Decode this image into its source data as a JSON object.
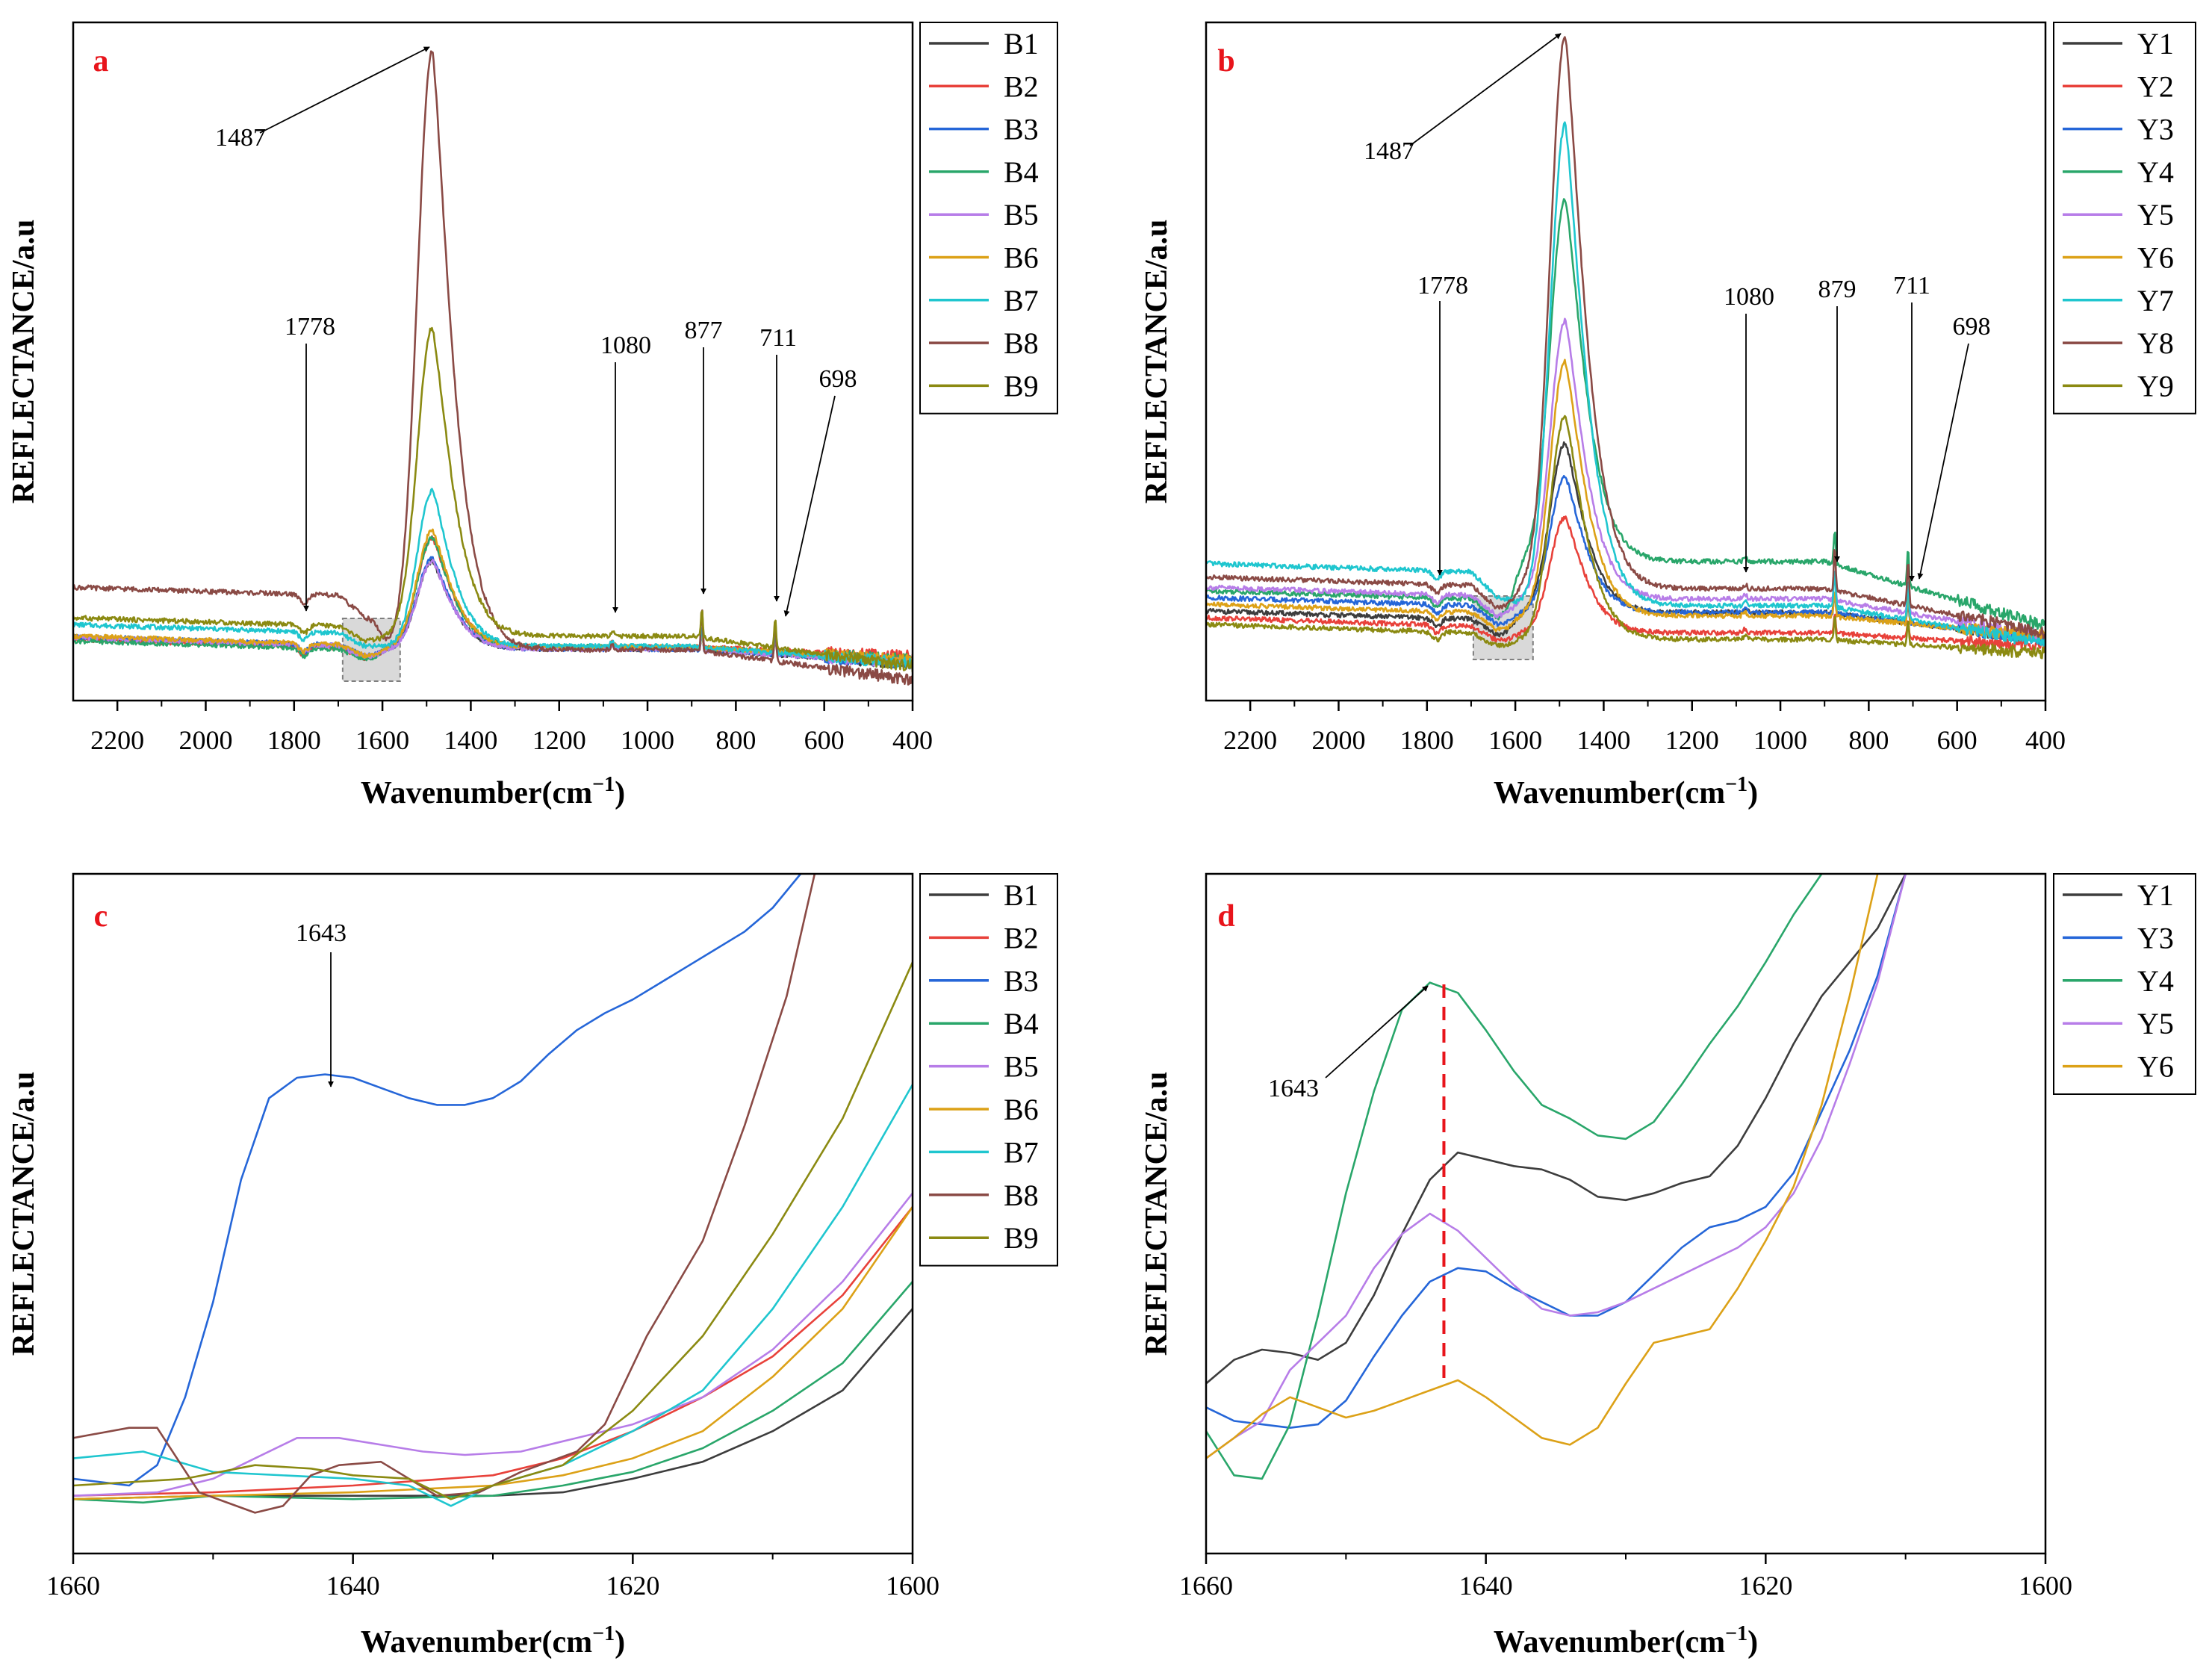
{
  "colors": {
    "B1": "#3d3d3d",
    "B2": "#e8413a",
    "B3": "#2566d8",
    "B4": "#29a66a",
    "B5": "#b77de8",
    "B6": "#dca117",
    "B7": "#1fc6cf",
    "B8": "#8a4a45",
    "B9": "#8b8a12",
    "Y1": "#3d3d3d",
    "Y2": "#e8413a",
    "Y3": "#2566d8",
    "Y4": "#29a66a",
    "Y5": "#b77de8",
    "Y6": "#dca117",
    "Y7": "#1fc6cf",
    "Y8": "#8a4a45",
    "Y9": "#8b8a12",
    "panel_label": "#e8141b",
    "guide_line": "#e8141b"
  },
  "chart_data": [
    {
      "id": "a",
      "type": "line",
      "panel_label": "a",
      "xlabel_main": "Wavenumber(cm",
      "xlabel_sup": "−1",
      "xlabel_tail": ")",
      "ylabel": "REFLECTANCE/a.u",
      "xlim": [
        2300,
        400
      ],
      "ylim": [
        0,
        100
      ],
      "xticks": [
        2200,
        2000,
        1800,
        1600,
        1400,
        1200,
        1000,
        800,
        600,
        400
      ],
      "xtick_labels": [
        "2200",
        "2000",
        "1800",
        "1600",
        "1400",
        "1200",
        "1000",
        "800",
        "600",
        "400"
      ],
      "highlight_range": [
        1690,
        1560
      ],
      "legend": [
        "B1",
        "B2",
        "B3",
        "B4",
        "B5",
        "B6",
        "B7",
        "B8",
        "B9"
      ],
      "series": [
        {
          "name": "B1",
          "baseline": 8.0,
          "peak": 20.5,
          "hf": 7.6,
          "endv": 5.5
        },
        {
          "name": "B2",
          "baseline": 7.8,
          "peak": 24.0,
          "hf": 7.9,
          "endv": 6.5
        },
        {
          "name": "B3",
          "baseline": 8.2,
          "peak": 21.0,
          "hf": 7.6,
          "endv": 5.5
        },
        {
          "name": "B4",
          "baseline": 7.6,
          "peak": 24.0,
          "hf": 7.9,
          "endv": 6.0
        },
        {
          "name": "B5",
          "baseline": 8.1,
          "peak": 20.5,
          "hf": 7.6,
          "endv": 5.5
        },
        {
          "name": "B6",
          "baseline": 8.3,
          "peak": 25.0,
          "hf": 7.9,
          "endv": 6.0
        },
        {
          "name": "B7",
          "baseline": 10.0,
          "peak": 31.0,
          "hf": 8.0,
          "endv": 5.5
        },
        {
          "name": "B8",
          "baseline": 15.5,
          "peak": 96.0,
          "hf": 7.5,
          "endv": 3.0
        },
        {
          "name": "B9",
          "baseline": 11.0,
          "peak": 55.0,
          "hf": 9.5,
          "endv": 5.0
        }
      ],
      "annotations": [
        {
          "label": "1487",
          "x": 1487
        },
        {
          "label": "1778",
          "x": 1778
        },
        {
          "label": "1080",
          "x": 1080
        },
        {
          "label": "877",
          "x": 877
        },
        {
          "label": "711",
          "x": 711
        },
        {
          "label": "698",
          "x": 698
        }
      ]
    },
    {
      "id": "b",
      "type": "line",
      "panel_label": "b",
      "xlabel_main": "Wavenumber(cm",
      "xlabel_sup": "−1",
      "xlabel_tail": ")",
      "ylabel": "REFLECTANCE/a.u",
      "xlim": [
        2300,
        400
      ],
      "ylim": [
        0,
        100
      ],
      "xticks": [
        2200,
        2000,
        1800,
        1600,
        1400,
        1200,
        1000,
        800,
        600,
        400
      ],
      "xtick_labels": [
        "2200",
        "2000",
        "1800",
        "1600",
        "1400",
        "1200",
        "1000",
        "800",
        "600",
        "400"
      ],
      "highlight_range": [
        1695,
        1560
      ],
      "legend": [
        "Y1",
        "Y2",
        "Y3",
        "Y4",
        "Y5",
        "Y6",
        "Y7",
        "Y8",
        "Y9"
      ],
      "series": [
        {
          "name": "Y1",
          "baseline": 12.0,
          "peak": 38.0,
          "hf": 13.0,
          "endv": 9.0
        },
        {
          "name": "Y2",
          "baseline": 11.0,
          "peak": 27.0,
          "hf": 10.0,
          "endv": 8.0
        },
        {
          "name": "Y3",
          "baseline": 14.0,
          "peak": 33.0,
          "hf": 13.0,
          "endv": 9.0
        },
        {
          "name": "Y4",
          "baseline": 15.0,
          "peak": 74.0,
          "hf": 20.5,
          "endv": 11.0
        },
        {
          "name": "Y5",
          "baseline": 15.5,
          "peak": 56.0,
          "hf": 15.0,
          "endv": 9.5
        },
        {
          "name": "Y6",
          "baseline": 13.0,
          "peak": 50.0,
          "hf": 12.5,
          "endv": 9.5
        },
        {
          "name": "Y7",
          "baseline": 19.0,
          "peak": 85.0,
          "hf": 14.0,
          "endv": 8.5
        },
        {
          "name": "Y8",
          "baseline": 17.0,
          "peak": 98.0,
          "hf": 16.5,
          "endv": 10.0
        },
        {
          "name": "Y9",
          "baseline": 10.0,
          "peak": 42.0,
          "hf": 9.0,
          "endv": 7.0
        }
      ],
      "annotations": [
        {
          "label": "1487",
          "x": 1487
        },
        {
          "label": "1778",
          "x": 1778
        },
        {
          "label": "1080",
          "x": 1080
        },
        {
          "label": "879",
          "x": 879
        },
        {
          "label": "711",
          "x": 711
        },
        {
          "label": "698",
          "x": 698
        }
      ]
    },
    {
      "id": "c",
      "type": "line",
      "panel_label": "c",
      "xlabel_main": "Wavenumber(cm",
      "xlabel_sup": "−1",
      "xlabel_tail": ")",
      "ylabel": "REFLECTANCE/a.u",
      "xlim": [
        1660,
        1600
      ],
      "ylim": [
        0,
        100
      ],
      "xticks": [
        1660,
        1640,
        1620,
        1600
      ],
      "xtick_labels": [
        "1660",
        "1640",
        "1620",
        "1600"
      ],
      "legend": [
        "B1",
        "B2",
        "B3",
        "B4",
        "B5",
        "B6",
        "B7",
        "B8",
        "B9"
      ],
      "series": [
        {
          "name": "B1",
          "x": [
            1660,
            1650,
            1640,
            1630,
            1625,
            1620,
            1615,
            1610,
            1605,
            1600
          ],
          "y": [
            8,
            8.5,
            8.5,
            8.5,
            9,
            11,
            13.5,
            18,
            24,
            36
          ]
        },
        {
          "name": "B2",
          "x": [
            1660,
            1650,
            1640,
            1630,
            1625,
            1620,
            1615,
            1610,
            1605,
            1600
          ],
          "y": [
            8.5,
            9,
            10,
            11.5,
            14,
            18,
            23,
            29,
            38,
            51
          ]
        },
        {
          "name": "B3",
          "x": [
            1660,
            1656,
            1654,
            1652,
            1650,
            1648,
            1646,
            1644,
            1642,
            1640,
            1638,
            1636,
            1634,
            1632,
            1630,
            1628,
            1626,
            1624,
            1622,
            1620,
            1618,
            1616,
            1614,
            1612,
            1610,
            1608
          ],
          "y": [
            11,
            10,
            13,
            23,
            37,
            55,
            67,
            70,
            70.5,
            70,
            68.5,
            67,
            66,
            66,
            67,
            69.5,
            73.5,
            77,
            79.5,
            81.5,
            84,
            86.5,
            89,
            91.5,
            95,
            100
          ]
        },
        {
          "name": "B4",
          "x": [
            1660,
            1655,
            1650,
            1640,
            1630,
            1625,
            1620,
            1615,
            1610,
            1605,
            1600
          ],
          "y": [
            8,
            7.5,
            8.5,
            8,
            8.5,
            10,
            12,
            15.5,
            21,
            28,
            40
          ]
        },
        {
          "name": "B5",
          "x": [
            1660,
            1654,
            1650,
            1647,
            1644,
            1641,
            1638,
            1635,
            1632,
            1628,
            1625,
            1620,
            1615,
            1610,
            1605,
            1600
          ],
          "y": [
            8.5,
            9,
            11,
            14,
            17,
            17,
            16,
            15,
            14.5,
            15,
            16.5,
            19,
            23,
            30,
            40,
            53
          ]
        },
        {
          "name": "B6",
          "x": [
            1660,
            1650,
            1640,
            1630,
            1625,
            1620,
            1615,
            1610,
            1605,
            1600
          ],
          "y": [
            8,
            8.5,
            9,
            10,
            11.5,
            14,
            18,
            26,
            36,
            51
          ]
        },
        {
          "name": "B7",
          "x": [
            1660,
            1655,
            1650,
            1640,
            1636,
            1633,
            1630,
            1625,
            1620,
            1615,
            1610,
            1605,
            1600
          ],
          "y": [
            14,
            15,
            12,
            11,
            10,
            7,
            10,
            13,
            18,
            24,
            36,
            51,
            69
          ]
        },
        {
          "name": "B8",
          "x": [
            1660,
            1656,
            1654,
            1651,
            1647,
            1645,
            1643,
            1641,
            1638,
            1636,
            1634,
            1631,
            1628,
            1624,
            1622,
            1619,
            1615,
            1612,
            1609,
            1607
          ],
          "y": [
            17,
            18.5,
            18.5,
            9,
            6,
            7,
            11.5,
            13,
            13.5,
            11,
            8.5,
            9,
            12,
            15,
            19,
            32,
            46,
            63,
            82,
            100
          ]
        },
        {
          "name": "B9",
          "x": [
            1660,
            1656,
            1652,
            1647,
            1643,
            1640,
            1636,
            1633,
            1630,
            1625,
            1620,
            1615,
            1610,
            1605,
            1600
          ],
          "y": [
            10,
            10.5,
            11,
            13,
            12.5,
            11.5,
            11,
            8,
            10,
            13,
            21,
            32,
            47,
            64,
            87
          ]
        }
      ],
      "annotations": [
        {
          "label": "1643",
          "x": 1642
        }
      ]
    },
    {
      "id": "d",
      "type": "line",
      "panel_label": "d",
      "xlabel_main": "Wavenumber(cm",
      "xlabel_sup": "−1",
      "xlabel_tail": ")",
      "ylabel": "REFLECTANCE/a.u",
      "xlim": [
        1660,
        1600
      ],
      "ylim": [
        0,
        100
      ],
      "xticks": [
        1660,
        1640,
        1620,
        1600
      ],
      "xtick_labels": [
        "1660",
        "1640",
        "1620",
        "1600"
      ],
      "legend": [
        "Y1",
        "Y3",
        "Y4",
        "Y5",
        "Y6"
      ],
      "series": [
        {
          "name": "Y1",
          "x": [
            1660,
            1658,
            1656,
            1654,
            1652,
            1650,
            1648,
            1646,
            1644,
            1642,
            1640,
            1638,
            1636,
            1634,
            1632,
            1630,
            1628,
            1626,
            1624,
            1622,
            1620,
            1618,
            1616,
            1614,
            1612,
            1610
          ],
          "y": [
            25,
            28.5,
            30,
            29.5,
            28.5,
            31,
            38,
            47,
            55,
            59,
            58,
            57,
            56.5,
            55,
            52.5,
            52,
            53,
            54.5,
            55.5,
            60,
            67,
            75,
            82,
            87,
            92,
            100
          ]
        },
        {
          "name": "Y3",
          "x": [
            1660,
            1658,
            1656,
            1654,
            1652,
            1650,
            1648,
            1646,
            1644,
            1642,
            1640,
            1638,
            1636,
            1634,
            1632,
            1630,
            1628,
            1626,
            1624,
            1622,
            1620,
            1618,
            1616,
            1614,
            1612,
            1610
          ],
          "y": [
            21.5,
            19.5,
            19,
            18.5,
            19,
            22.5,
            29,
            35,
            40,
            42,
            41.5,
            39,
            37,
            35,
            35,
            37,
            41,
            45,
            48,
            49,
            51,
            56,
            65,
            74,
            85,
            100
          ]
        },
        {
          "name": "Y4",
          "x": [
            1660,
            1658,
            1656,
            1654,
            1652,
            1650,
            1648,
            1646,
            1644,
            1642,
            1640,
            1638,
            1636,
            1634,
            1632,
            1630,
            1628,
            1626,
            1624,
            1622,
            1620,
            1618,
            1616
          ],
          "y": [
            18,
            11.5,
            11,
            19,
            35,
            53,
            68,
            80,
            84,
            82.5,
            77,
            71,
            66,
            64,
            61.5,
            61,
            63.5,
            69,
            75,
            80.5,
            87,
            94,
            100
          ]
        },
        {
          "name": "Y5",
          "x": [
            1660,
            1658,
            1656,
            1654,
            1652,
            1650,
            1648,
            1646,
            1644,
            1642,
            1640,
            1638,
            1636,
            1634,
            1632,
            1630,
            1628,
            1626,
            1624,
            1622,
            1620,
            1618,
            1616,
            1614,
            1612,
            1610
          ],
          "y": [
            14,
            17,
            19.5,
            27,
            31,
            35,
            42,
            47,
            50,
            47.5,
            43.5,
            39.5,
            36,
            35,
            35.5,
            37,
            39,
            41,
            43,
            45,
            48,
            53,
            61,
            72,
            84,
            100
          ]
        },
        {
          "name": "Y6",
          "x": [
            1660,
            1658,
            1656,
            1654,
            1652,
            1650,
            1648,
            1646,
            1644,
            1642,
            1640,
            1638,
            1636,
            1634,
            1632,
            1630,
            1628,
            1626,
            1624,
            1622,
            1620,
            1618,
            1616,
            1614,
            1612
          ],
          "y": [
            14,
            17,
            20.5,
            23,
            21.5,
            20,
            21,
            22.5,
            24,
            25.5,
            23,
            20,
            17,
            16,
            18.5,
            25,
            31,
            32,
            33,
            39,
            46,
            54,
            66,
            82,
            100
          ]
        }
      ],
      "guide_x": 1643,
      "annotations": [
        {
          "label": "1643",
          "x": 1643
        }
      ]
    }
  ]
}
